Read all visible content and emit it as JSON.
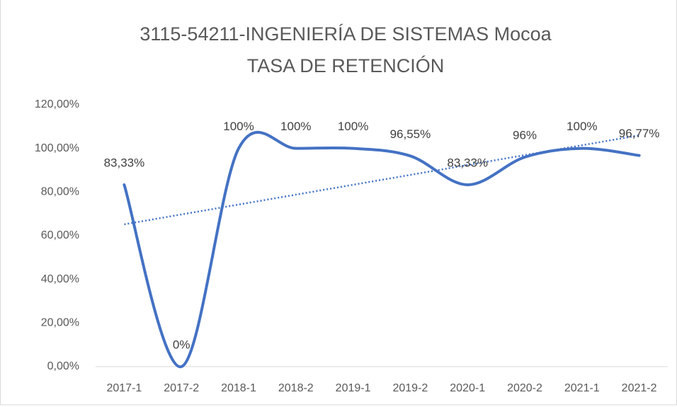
{
  "chart_data": {
    "type": "line",
    "title": [
      "3115-54211-INGENIERÍA DE SISTEMAS Mocoa",
      "TASA DE RETENCIÓN"
    ],
    "categories": [
      "2017-1",
      "2017-2",
      "2018-1",
      "2018-2",
      "2019-1",
      "2019-2",
      "2020-1",
      "2020-2",
      "2021-1",
      "2021-2"
    ],
    "series": [
      {
        "name": "TASA DE RETENCIÓN",
        "color": "#4472c4",
        "values": [
          83.33,
          0,
          100,
          100,
          100,
          96.55,
          83.33,
          96,
          100,
          96.77
        ],
        "value_labels": [
          "83,33%",
          "0%",
          "100%",
          "100%",
          "100%",
          "96,55%",
          "83,33%",
          "96%",
          "100%",
          "96,77%"
        ]
      }
    ],
    "ylim": [
      0,
      120
    ],
    "yticks": [
      {
        "value": 0,
        "label": "0,00%"
      },
      {
        "value": 20,
        "label": "20,00%"
      },
      {
        "value": 40,
        "label": "40,00%"
      },
      {
        "value": 60,
        "label": "60,00%"
      },
      {
        "value": 80,
        "label": "80,00%"
      },
      {
        "value": 100,
        "label": "100,00%"
      },
      {
        "value": 120,
        "label": "120,00%"
      }
    ],
    "grid": false,
    "smooth": true,
    "trendline": "linear"
  }
}
